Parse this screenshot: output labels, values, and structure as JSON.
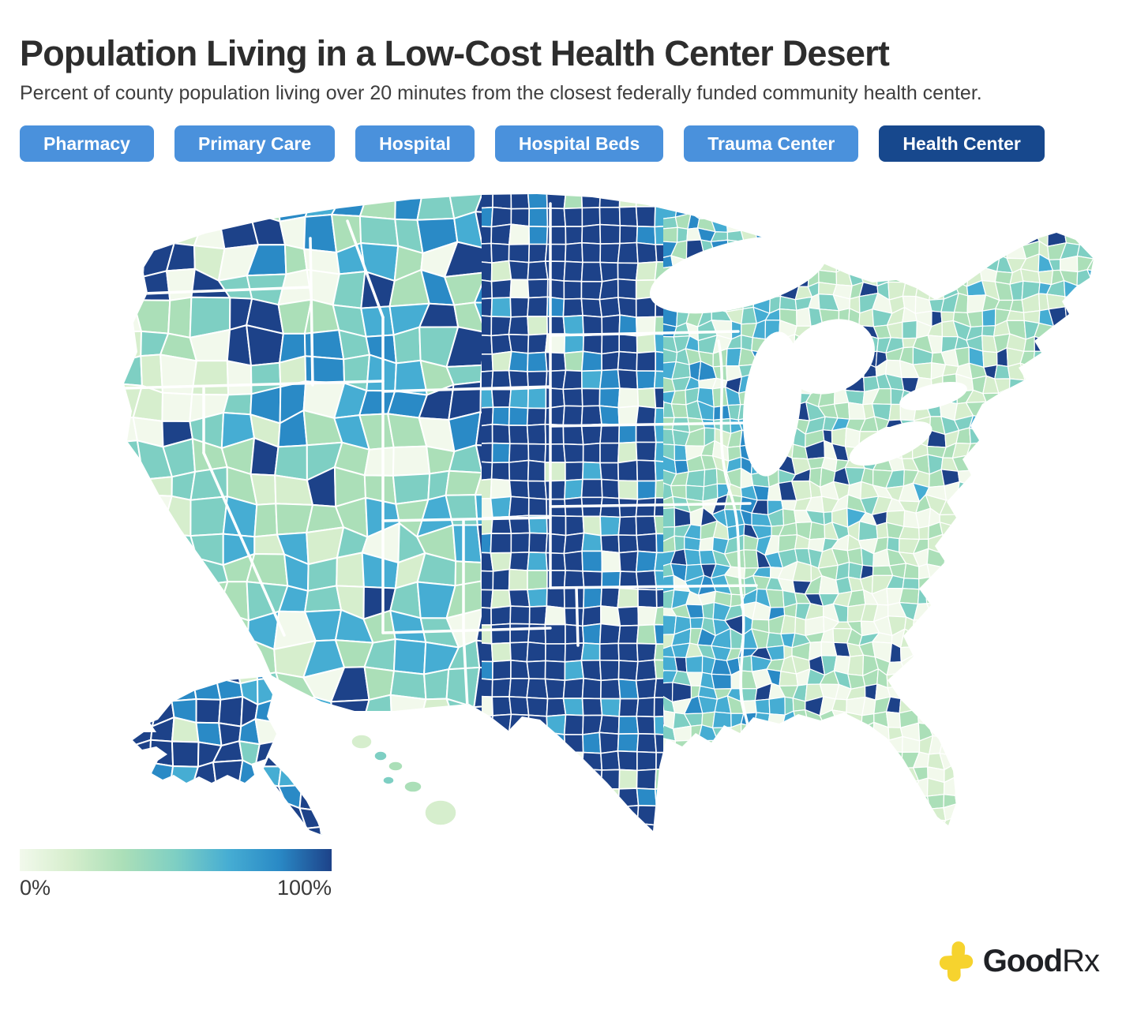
{
  "header": {
    "title": "Population Living in a Low-Cost Health Center Desert",
    "subtitle": "Percent of county population living over 20 minutes from the closest federally funded community health center."
  },
  "filters": {
    "items": [
      {
        "label": "Pharmacy",
        "active": false
      },
      {
        "label": "Primary Care",
        "active": false
      },
      {
        "label": "Hospital",
        "active": false
      },
      {
        "label": "Hospital Beds",
        "active": false
      },
      {
        "label": "Trauma Center",
        "active": false
      },
      {
        "label": "Health Center",
        "active": true
      }
    ]
  },
  "legend": {
    "min_label": "0%",
    "max_label": "100%"
  },
  "logo": {
    "brand_bold": "Good",
    "brand_light": "Rx",
    "cross_color": "#f6d32e"
  },
  "colors": {
    "button": "#4a91dc",
    "button_active": "#17488d",
    "title_text": "#2d2d2d",
    "county_border": "#ffffff",
    "scale": [
      "#f2f9ec",
      "#d6eecd",
      "#abdfb8",
      "#7ecfc3",
      "#46add3",
      "#2a8ac6",
      "#1d4289"
    ]
  },
  "chart_data": {
    "type": "choropleth_map",
    "region": "United States counties, including Alaska and Hawaii insets",
    "metric": "Percent of county population living over 20 minutes from the closest federally funded community health center",
    "selected_category": "Health Center",
    "categories": [
      "Pharmacy",
      "Primary Care",
      "Hospital",
      "Hospital Beds",
      "Trauma Center",
      "Health Center"
    ],
    "scale": {
      "min": "0%",
      "max": "100%",
      "ramp": [
        "#f2f9ec",
        "#d6eecd",
        "#abdfb8",
        "#7ecfc3",
        "#46add3",
        "#2a8ac6",
        "#1d4289"
      ]
    },
    "pattern_summary": "Great Plains counties (Montana through west Texas) are mostly 80-100% (dark navy); Mountain West is mixed teal/blue with navy clusters; Pacific coast, Upper Midwest and eastern U.S. are mostly 0-40% (pale green to teal) with scattered navy counties; Florida and Hawaii are mostly light green; Alaska is mostly dark navy."
  }
}
